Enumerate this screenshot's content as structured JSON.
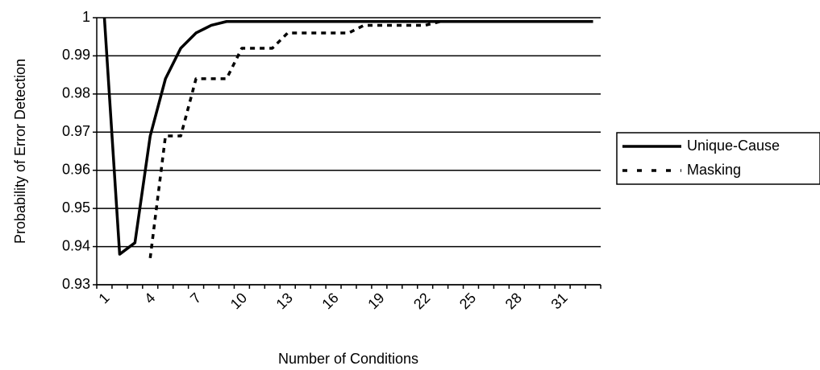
{
  "chart_data": {
    "type": "line",
    "x_label": "Number of Conditions",
    "y_label": "Probability of Error Detection",
    "categories": [
      1,
      null,
      null,
      4,
      null,
      null,
      7,
      null,
      null,
      10,
      null,
      null,
      13,
      null,
      null,
      16,
      null,
      null,
      19,
      null,
      null,
      22,
      null,
      null,
      25,
      null,
      null,
      28,
      null,
      null,
      31,
      null,
      null
    ],
    "series": [
      {
        "name": "Unique-Cause",
        "color": "#000000",
        "dash": "solid",
        "values": [
          1.0,
          0.938,
          0.941,
          0.969,
          0.984,
          0.992,
          0.996,
          0.998,
          0.999,
          0.999,
          0.999,
          0.999,
          0.999,
          0.999,
          0.999,
          0.999,
          0.999,
          0.999,
          0.999,
          0.999,
          0.999,
          0.999,
          0.999,
          0.999,
          0.999,
          0.999,
          0.999,
          0.999,
          0.999,
          0.999,
          0.999,
          0.999,
          0.999
        ]
      },
      {
        "name": "Masking",
        "color": "#000000",
        "dash": "dashed",
        "values": [
          null,
          null,
          null,
          0.937,
          0.969,
          0.969,
          0.984,
          0.984,
          0.984,
          0.992,
          0.992,
          0.992,
          0.996,
          0.996,
          0.996,
          0.996,
          0.996,
          0.998,
          0.998,
          0.998,
          0.998,
          0.998,
          0.999,
          0.999,
          0.999,
          0.999,
          0.999,
          0.999,
          0.999,
          0.999,
          0.999,
          0.999,
          0.999
        ]
      }
    ],
    "ylim": [
      0.93,
      1
    ],
    "yticks": [
      0.93,
      0.94,
      0.95,
      0.96,
      0.97,
      0.98,
      0.99,
      1
    ],
    "grid": true,
    "legend": "right"
  }
}
